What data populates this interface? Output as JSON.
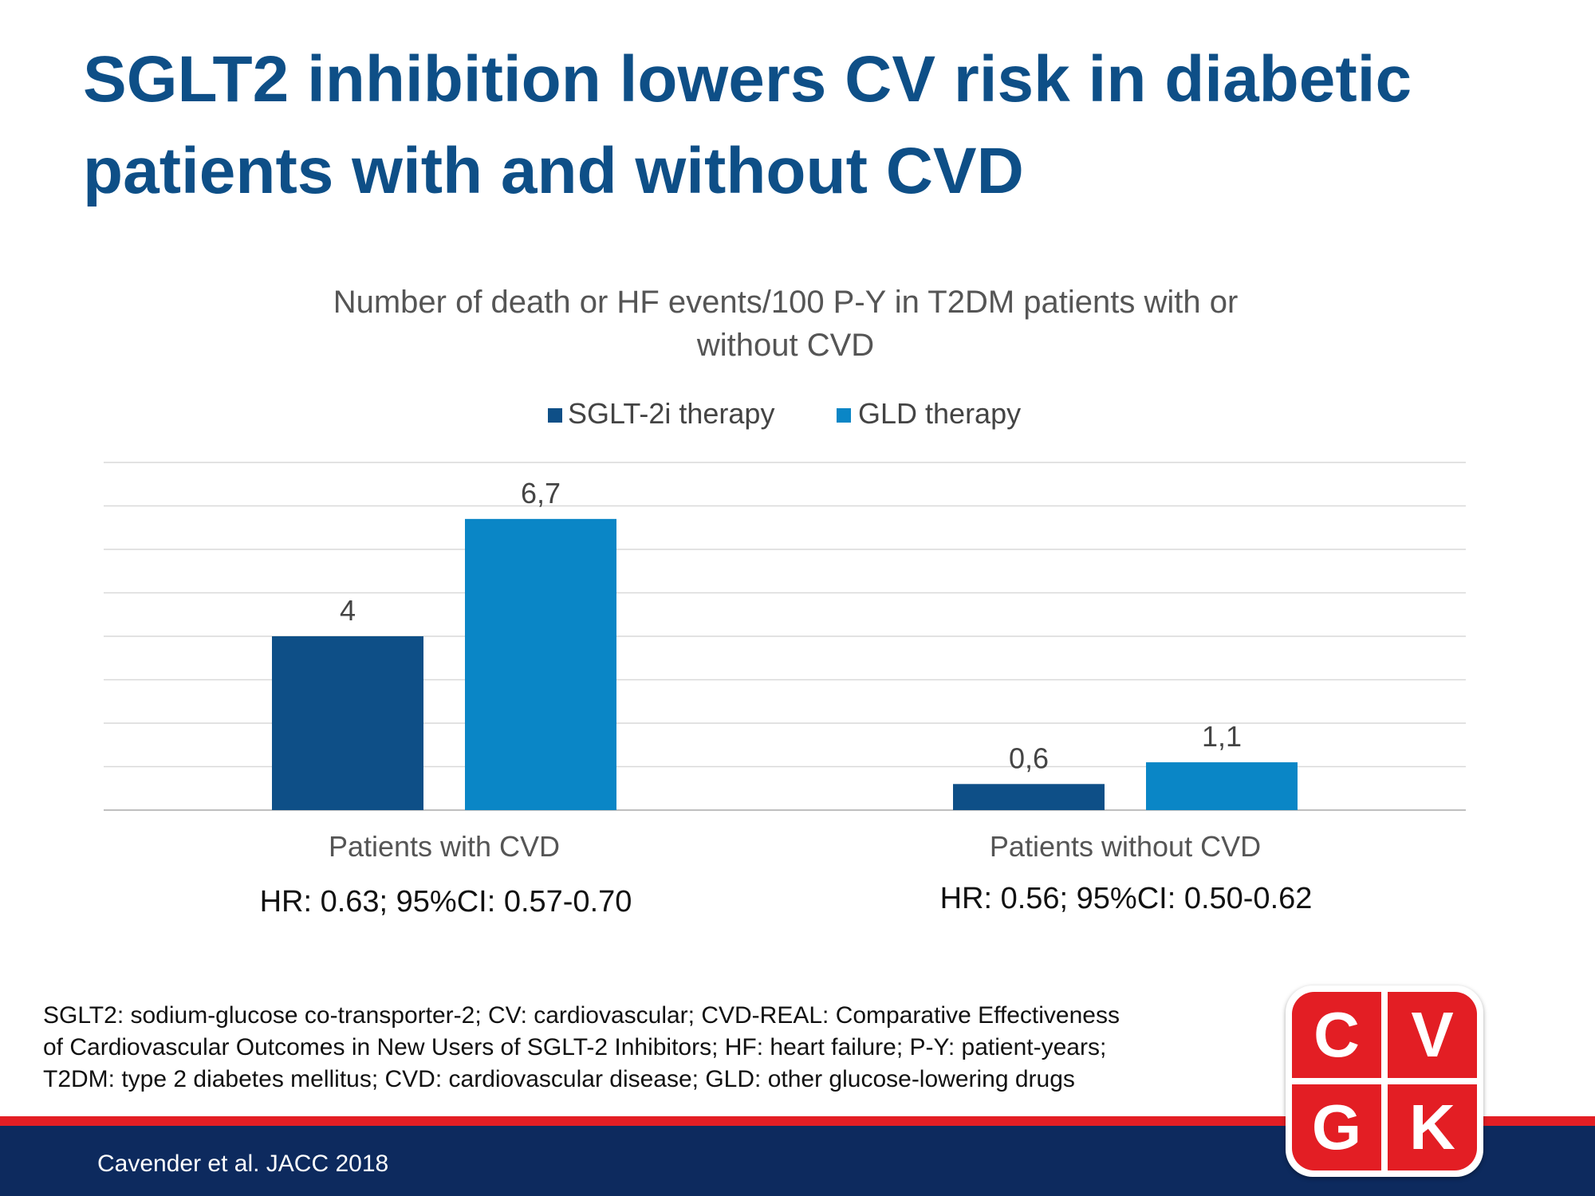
{
  "title": {
    "line1": "SGLT2 inhibition lowers CV risk in diabetic",
    "line2": "patients with and without CVD"
  },
  "chart_data": {
    "type": "bar",
    "title_lines": [
      "Number of death or HF events/100 P-Y in T2DM patients with or",
      "without CVD"
    ],
    "categories": [
      "Patients with CVD",
      "Patients without CVD"
    ],
    "series": [
      {
        "name": "SGLT-2i therapy",
        "color": "#0e4f87",
        "values": [
          4,
          0.6
        ],
        "labels": [
          "4",
          "0,6"
        ]
      },
      {
        "name": "GLD therapy",
        "color": "#0a86c6",
        "values": [
          6.7,
          1.1
        ],
        "labels": [
          "6,7",
          "1,1"
        ]
      }
    ],
    "ylim": [
      0,
      8
    ],
    "gridlines": true,
    "legend_position": "top-center",
    "xlabel": "",
    "ylabel": ""
  },
  "hazard_ratios": [
    "HR: 0.63; 95%CI: 0.57-0.70",
    "HR: 0.56; 95%CI: 0.50-0.62"
  ],
  "footnote": {
    "line1": "SGLT2: sodium-glucose co-transporter-2; CV: cardiovascular; CVD-REAL: Comparative Effectiveness",
    "line2": "of Cardiovascular Outcomes in New Users of SGLT-2 Inhibitors; HF: heart failure; P-Y: patient-years;",
    "line3": "T2DM: type 2 diabetes mellitus; CVD: cardiovascular disease; GLD: other glucose-lowering drugs"
  },
  "citation": "Cavender et al. JACC 2018",
  "logo": {
    "letters": [
      "C",
      "V",
      "G",
      "K"
    ],
    "color": "#e31e24"
  }
}
